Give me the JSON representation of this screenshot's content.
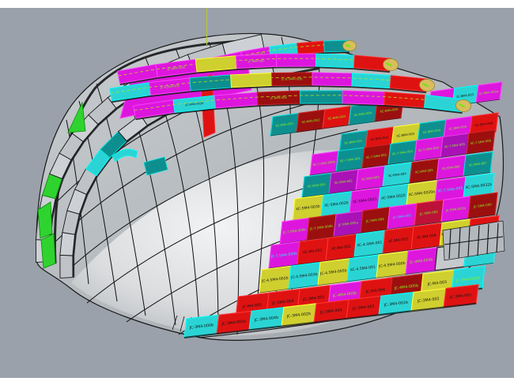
{
  "viewport": {
    "bg": "#9aa1ab",
    "frame": "#ffffff",
    "construction_line_color": "#b5c832",
    "edge_color": "#1a1a1a"
  },
  "palette": {
    "magenta": {
      "f": "#dd16dd",
      "s": "#ff44ff"
    },
    "purple": {
      "f": "#a912b6",
      "s": "#e040e0"
    },
    "cyan": {
      "f": "#2bd4d4",
      "s": "#00ffff"
    },
    "teal": {
      "f": "#0e8f8f",
      "s": "#00e0e0"
    },
    "red": {
      "f": "#df1212",
      "s": "#ff3333"
    },
    "darkred": {
      "f": "#9c0f0f",
      "s": "#d42222"
    },
    "crimson": {
      "f": "#bc1238",
      "s": "#ff3355"
    },
    "yellow": {
      "f": "#cfcf30",
      "s": "#ffff33"
    },
    "khaki": {
      "f": "#d9bd5e",
      "s": "#9a8a28"
    },
    "silver": {
      "f": "#c6cacd",
      "s": "#1a1a1a"
    },
    "gray1": {
      "f": "#cdd1d5",
      "s": "#141414"
    },
    "gray2": {
      "f": "#bfc3c7",
      "s": "#141414"
    },
    "green": {
      "f": "#2fd32f",
      "s": "#0c8a0c"
    }
  },
  "text_colors": {
    "k": "#151515",
    "g": "#86f222",
    "c": "#19eef2",
    "y": "#e8f060"
  },
  "rails": [
    {
      "segments": [
        {
          "c": "gray1"
        },
        {
          "c": "gray2"
        },
        {
          "c": "gray1"
        },
        {
          "c": "green"
        },
        {
          "c": "gray1"
        },
        {
          "c": "gray2"
        },
        {
          "c": "gray1"
        },
        {
          "c": "gray2"
        },
        {
          "c": "gray1"
        },
        {
          "c": "gray2"
        },
        {
          "c": "gray1"
        },
        {
          "c": "gray2"
        },
        {
          "c": "gray1"
        }
      ]
    },
    {
      "segments": [
        {
          "c": "gray2"
        },
        {
          "c": "gray1"
        },
        {
          "c": "gray2"
        },
        {
          "c": "gray1"
        },
        {
          "c": "gray2"
        },
        {
          "c": "cyan"
        },
        {
          "c": "teal"
        },
        {
          "c": "gray1"
        },
        {
          "c": "gray2"
        },
        {
          "c": "gray1"
        },
        {
          "c": "gray2"
        },
        {
          "c": "gray1"
        },
        {
          "c": "gray2"
        }
      ]
    }
  ],
  "strakes": [
    {
      "tip": "khaki",
      "segments": [
        {
          "c": "magenta"
        },
        {
          "c": "magenta",
          "l": "JC-9.5M4-001",
          "t": "g"
        },
        {
          "c": "cyan"
        },
        {
          "c": "red"
        },
        {
          "c": "teal"
        }
      ]
    },
    {
      "tip": "khaki",
      "segments": [
        {
          "c": "magenta"
        },
        {
          "c": "magenta",
          "l": "JC-9M4-001b",
          "t": "g"
        },
        {
          "c": "yellow"
        },
        {
          "c": "magenta",
          "l": "JC-9M4-002",
          "t": "g"
        },
        {
          "c": "magenta"
        },
        {
          "c": "cyan"
        },
        {
          "c": "red"
        }
      ]
    },
    {
      "tip": "khaki",
      "segments": [
        {
          "c": "cyan"
        },
        {
          "c": "magenta",
          "l": "JC-8.5M4-001",
          "t": "g"
        },
        {
          "c": "teal"
        },
        {
          "c": "yellow"
        },
        {
          "c": "darkred",
          "l": "JC-8.5M4-003b",
          "t": "g"
        },
        {
          "c": "magenta"
        },
        {
          "c": "cyan"
        },
        {
          "c": "red"
        }
      ]
    },
    {
      "tip": "khaki",
      "segments": [
        {
          "c": "magenta"
        },
        {
          "c": "cyan",
          "l": "JC-8M4-002b",
          "t": "k"
        },
        {
          "c": "magenta"
        },
        {
          "c": "darkred",
          "l": "JC-8M4-004",
          "t": "g"
        },
        {
          "c": "teal"
        },
        {
          "c": "magenta"
        },
        {
          "c": "red"
        },
        {
          "c": "cyan"
        }
      ]
    }
  ],
  "grid_rows": [
    {
      "cells": [
        {
          "c": "magenta",
          "l": "JC-8M4-004a",
          "t": "g"
        },
        {
          "c": "cyan",
          "l": "JC-8M4-003",
          "t": "k"
        },
        {
          "c": "magenta",
          "l": "JC-8M4-002a",
          "t": "g"
        }
      ]
    },
    {
      "cells": [
        {
          "c": "teal",
          "l": "XC-M4b-001",
          "t": "g"
        },
        {
          "c": "darkred",
          "l": "XC-M4b-002",
          "t": "g"
        },
        {
          "c": "red",
          "l": "XC-M4b-003",
          "t": "g"
        },
        {
          "c": "teal",
          "l": "XC-M4b-004",
          "t": "g"
        },
        {
          "c": "darkred",
          "l": "XC-M4b-005",
          "t": "g"
        }
      ]
    },
    {
      "cells": [
        {
          "c": "teal",
          "l": "XC-8M4-001",
          "t": "g"
        },
        {
          "c": "red",
          "l": "XC-8M4-002",
          "t": "k"
        },
        {
          "c": "yellow",
          "l": "XC-8M4-003",
          "t": "k"
        },
        {
          "c": "teal",
          "l": "XC-8M4-004",
          "t": "g"
        },
        {
          "c": "magenta",
          "l": "XC-8M4-005",
          "t": "g"
        },
        {
          "c": "red",
          "l": "XC-8M4-006",
          "t": "k"
        }
      ]
    },
    {
      "cells": [
        {
          "c": "magenta",
          "l": "XC-7.5M4-000b",
          "t": "g"
        },
        {
          "c": "teal",
          "l": "XC-7.5M4-001",
          "t": "g"
        },
        {
          "c": "darkred",
          "l": "XC-7.5M4-002",
          "t": "g"
        },
        {
          "c": "teal",
          "l": "XC-7.5M4-003",
          "t": "g"
        },
        {
          "c": "magenta",
          "l": "XC-7.5M4-004",
          "t": "g"
        },
        {
          "c": "purple",
          "l": "XC-7.5M4-005",
          "t": "g"
        },
        {
          "c": "darkred",
          "l": "XC-7.5M4-006",
          "t": "g"
        }
      ]
    },
    {
      "cells": [
        {
          "c": "teal",
          "l": "XC-6M4-001",
          "t": "g"
        },
        {
          "c": "purple",
          "l": "XC-6M4-002",
          "t": "g"
        },
        {
          "c": "magenta",
          "l": "XC-6M4-003",
          "t": "g"
        },
        {
          "c": "cyan",
          "l": "XC-6M4-004",
          "t": "k"
        },
        {
          "c": "darkred",
          "l": "XC-6M4-005",
          "t": "g"
        },
        {
          "c": "magenta",
          "l": "XC-6M4-006",
          "t": "g"
        },
        {
          "c": "teal",
          "l": "XC-6M4-007",
          "t": "g"
        }
      ]
    },
    {
      "cells": [
        {
          "c": "yellow",
          "l": "XC-5M4-003b",
          "t": "k"
        },
        {
          "c": "cyan",
          "l": "XC-5M4-002b",
          "t": "k"
        },
        {
          "c": "magenta",
          "l": "XC-5M4-0021",
          "t": "k"
        },
        {
          "c": "cyan",
          "l": "XC-5M4-0020",
          "t": "k"
        },
        {
          "c": "yellow",
          "l": "XC-5M4-0020a",
          "t": "k"
        },
        {
          "c": "magenta",
          "l": "XC-7.5M4-005",
          "t": "c"
        },
        {
          "c": "cyan",
          "l": "XC-5M4-0032b",
          "t": "k"
        }
      ]
    },
    {
      "cells": [
        {
          "c": "magenta",
          "l": "JC-7.5M4-000b",
          "t": "g"
        },
        {
          "c": "darkred",
          "l": "JC-7.5M4-004b",
          "t": "g"
        },
        {
          "c": "purple",
          "l": "JC-5M4-005a",
          "t": "g"
        },
        {
          "c": "darkred",
          "l": "JC-5M4-004",
          "t": "g"
        },
        {
          "c": "magenta",
          "l": "JC-5M4-003",
          "t": "c"
        },
        {
          "c": "crimson",
          "l": "JC-5M4-002",
          "t": "g"
        },
        {
          "c": "magenta",
          "l": "JC-5M4-001b",
          "t": "g"
        },
        {
          "c": "darkred",
          "l": "JC-5M4-000",
          "t": "g"
        }
      ]
    },
    {
      "cells": [
        {
          "c": "magenta",
          "l": "JC-7.5M4-000b",
          "t": "c"
        },
        {
          "c": "red",
          "l": "XC-M4-001",
          "t": "k"
        },
        {
          "c": "red",
          "l": "XC-M4-002",
          "t": "k"
        },
        {
          "c": "cyan",
          "l": "XC-4.5M4-001",
          "t": "k"
        },
        {
          "c": "red",
          "l": "XC-M4-003",
          "t": "k"
        },
        {
          "c": "red",
          "l": "XC-M4-004",
          "t": "k"
        },
        {
          "c": "yellow",
          "l": "XC-4.5M4-005b",
          "t": "k"
        },
        {
          "c": "red",
          "l": "XC-M4-005",
          "t": "k"
        }
      ]
    },
    {
      "cells": [
        {
          "c": "yellow",
          "l": "JC-4.5M4-002b",
          "t": "k"
        },
        {
          "c": "cyan",
          "l": "JC-4.5M4-003b",
          "t": "k"
        },
        {
          "c": "yellow",
          "l": "JC-4.5M4-005b",
          "t": "k"
        },
        {
          "c": "cyan",
          "l": "XC-4.5M4-001",
          "t": "k"
        },
        {
          "c": "yellow",
          "l": "JC-4.5M4-000b",
          "t": "k"
        },
        {
          "c": "magenta",
          "l": "JC-4M4-003b",
          "t": "g"
        },
        {
          "c": "silver",
          "l": "",
          "t": "k"
        },
        {
          "c": "cyan",
          "l": "JC-4M4-005b",
          "t": "g"
        }
      ]
    },
    {
      "cells": [
        {
          "c": "red",
          "l": "JC-M4-005",
          "t": "k"
        },
        {
          "c": "red",
          "l": "JC-3M4-004",
          "t": "k"
        },
        {
          "c": "red",
          "l": "JC-3M4-005",
          "t": "k"
        },
        {
          "c": "magenta",
          "l": "JC-4M4-003b",
          "t": "g"
        },
        {
          "c": "red",
          "l": "JC-M4-004",
          "t": "k"
        },
        {
          "c": "darkred",
          "l": "JC-4M4-005b",
          "t": "g"
        },
        {
          "c": "yellow",
          "l": "JC-M4-003",
          "t": "k"
        },
        {
          "c": "cyan",
          "l": "JC-3M4-003b",
          "t": "g"
        }
      ]
    },
    {
      "cells": [
        {
          "c": "cyan",
          "l": "JC-3M4-000b",
          "t": "k"
        },
        {
          "c": "red",
          "l": "JC-3M4-005b",
          "t": "k"
        },
        {
          "c": "cyan",
          "l": "JC-3M4-004b",
          "t": "k"
        },
        {
          "c": "yellow",
          "l": "JC-3M4-002b",
          "t": "k"
        },
        {
          "c": "red",
          "l": "JC-3M4-004",
          "t": "k"
        },
        {
          "c": "red",
          "l": "JC-3M4-003",
          "t": "k"
        },
        {
          "c": "cyan",
          "l": "JC-3M4-001b",
          "t": "k"
        },
        {
          "c": "yellow",
          "l": "JC-3M4-002",
          "t": "k"
        },
        {
          "c": "red",
          "l": "JC-3M4-001",
          "t": "k"
        }
      ]
    }
  ]
}
